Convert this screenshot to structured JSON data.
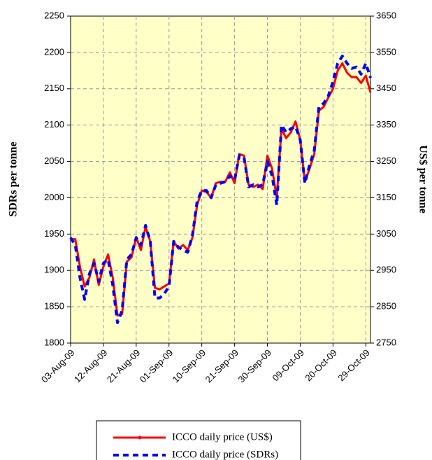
{
  "chart_data": {
    "type": "line",
    "categories": [
      "03-Aug-09",
      null,
      null,
      null,
      null,
      null,
      null,
      "12-Aug-09",
      null,
      null,
      null,
      null,
      null,
      null,
      "21-Aug-09",
      null,
      null,
      null,
      null,
      null,
      null,
      "01-Sep-09",
      null,
      null,
      null,
      null,
      null,
      null,
      "10-Sep-09",
      null,
      null,
      null,
      null,
      null,
      null,
      "21-Sep-09",
      null,
      null,
      null,
      null,
      null,
      null,
      "30-Sep-09",
      null,
      null,
      null,
      null,
      null,
      null,
      "09-Oct-09",
      null,
      null,
      null,
      null,
      null,
      null,
      "20-Oct-09",
      null,
      null,
      null,
      null,
      null,
      null,
      "29-Oct-09",
      null
    ],
    "ylabel": "SDRs per tonne",
    "y2label": "US$ per tonne",
    "ylim": [
      1800,
      2250
    ],
    "yticks": [
      1800,
      1850,
      1900,
      1950,
      2000,
      2050,
      2100,
      2150,
      2200,
      2250
    ],
    "y2lim": [
      2750,
      3650
    ],
    "y2ticks": [
      2750,
      2850,
      2950,
      3050,
      3150,
      3250,
      3350,
      3450,
      3550,
      3650
    ],
    "grid": true,
    "legend": "bottom",
    "series": [
      {
        "name": "ICCO daily price (US$)",
        "color": "#ff0000",
        "axis": "y2",
        "values": [
          3036,
          3036,
          2960,
          2906,
          2930,
          2980,
          2910,
          2960,
          2994,
          2930,
          2826,
          2830,
          2974,
          2986,
          3042,
          3006,
          3070,
          3030,
          2902,
          2898,
          2906,
          2914,
          3030,
          3010,
          3020,
          3006,
          3040,
          3130,
          3170,
          3166,
          3150,
          3190,
          3194,
          3194,
          3220,
          3190,
          3270,
          3266,
          3186,
          3180,
          3186,
          3174,
          3266,
          3230,
          3150,
          3340,
          3314,
          3330,
          3360,
          3310,
          3194,
          3230,
          3270,
          3390,
          3400,
          3426,
          3450,
          3500,
          3520,
          3494,
          3482,
          3482,
          3466,
          3486,
          3440
        ]
      },
      {
        "name": "ICCO daily price (SDRs)",
        "color": "#0000ff",
        "values": [
          1945,
          1935,
          1890,
          1860,
          1895,
          1910,
          1885,
          1910,
          1915,
          1880,
          1828,
          1845,
          1915,
          1922,
          1945,
          1935,
          1962,
          1940,
          1862,
          1862,
          1868,
          1878,
          1940,
          1932,
          1928,
          1925,
          1948,
          1995,
          2010,
          2010,
          2000,
          2018,
          2020,
          2022,
          2030,
          2025,
          2058,
          2056,
          2015,
          2018,
          2015,
          2018,
          2050,
          2030,
          1990,
          2100,
          2090,
          2095,
          2098,
          2080,
          2020,
          2045,
          2065,
          2125,
          2130,
          2140,
          2160,
          2185,
          2195,
          2185,
          2178,
          2180,
          2170,
          2185,
          2165
        ]
      }
    ]
  }
}
